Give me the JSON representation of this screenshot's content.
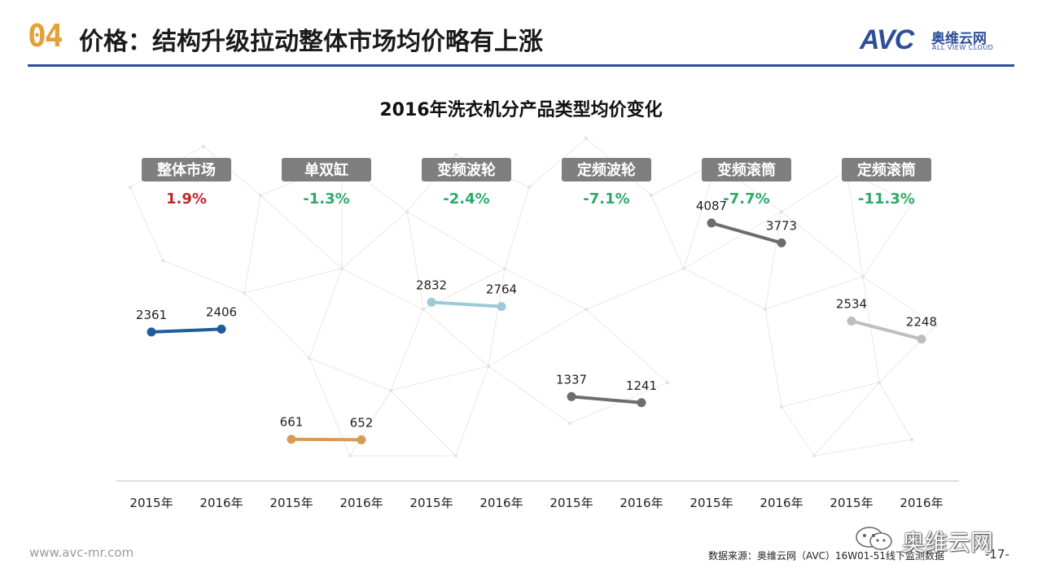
{
  "header": {
    "number": "04",
    "title": "价格：结构升级拉动整体市场均价略有上涨",
    "logo_main": "AVC",
    "logo_cn": "奥维云网",
    "logo_en": "ALL VIEW CLOUD"
  },
  "footer": {
    "url": "www.avc-mr.com",
    "source": "数据来源：奥维云网（AVC）16W01-51线下监测数据",
    "page": "-17-",
    "watermark": "奥维云网"
  },
  "colors": {
    "badge_bg": "#7f7f7f",
    "positive": "#c0272d",
    "negative": "#2bab6a",
    "axis": "#bfbfbf"
  },
  "chart_data": {
    "type": "line",
    "title": "2016年洗衣机分产品类型均价变化",
    "ylim": [
      0,
      4700
    ],
    "groups": [
      {
        "label": "整体市场",
        "change": "1.9%",
        "trend": "up",
        "color": "#1f5c99",
        "categories": [
          "2015年",
          "2016年"
        ],
        "values": [
          2361,
          2406
        ]
      },
      {
        "label": "单双缸",
        "change": "-1.3%",
        "trend": "down",
        "color": "#d99a56",
        "categories": [
          "2015年",
          "2016年"
        ],
        "values": [
          661,
          652
        ]
      },
      {
        "label": "变频波轮",
        "change": "-2.4%",
        "trend": "down",
        "color": "#9ccad6",
        "categories": [
          "2015年",
          "2016年"
        ],
        "values": [
          2832,
          2764
        ]
      },
      {
        "label": "定频波轮",
        "change": "-7.1%",
        "trend": "down",
        "color": "#6d6d6d",
        "categories": [
          "2015年",
          "2016年"
        ],
        "values": [
          1337,
          1241
        ]
      },
      {
        "label": "变频滚筒",
        "change": "-7.7%",
        "trend": "down",
        "color": "#6d6d6d",
        "categories": [
          "2015年",
          "2016年"
        ],
        "values": [
          4087,
          3773
        ]
      },
      {
        "label": "定频滚筒",
        "change": "-11.3%",
        "trend": "down",
        "color": "#bdbdc2",
        "categories": [
          "2015年",
          "2016年"
        ],
        "values": [
          2534,
          2248
        ]
      }
    ]
  }
}
